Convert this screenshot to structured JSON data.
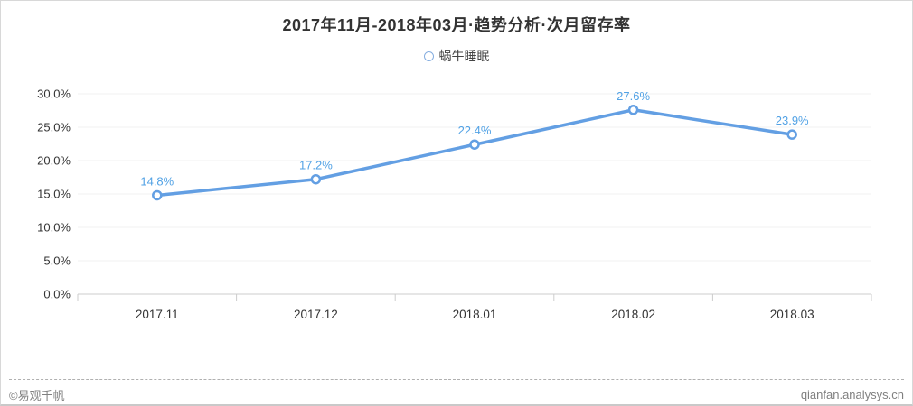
{
  "header": {
    "title": "2017年11月-2018年03月·趋势分析·次月留存率"
  },
  "legend": {
    "items": [
      {
        "label": "蜗牛睡眠",
        "marker": "open-circle-icon"
      }
    ]
  },
  "chart_data": {
    "type": "line",
    "title": "2017年11月-2018年03月·趋势分析·次月留存率",
    "categories": [
      "2017.11",
      "2017.12",
      "2018.01",
      "2018.02",
      "2018.03"
    ],
    "series": [
      {
        "name": "蜗牛睡眠",
        "values": [
          14.8,
          17.2,
          22.4,
          27.6,
          23.9
        ]
      }
    ],
    "data_labels": [
      "14.8%",
      "17.2%",
      "22.4%",
      "27.6%",
      "23.9%"
    ],
    "xlabel": "",
    "ylabel": "",
    "ylim": [
      0,
      30
    ],
    "ytick_step": 5,
    "ytick_labels": [
      "0.0%",
      "5.0%",
      "10.0%",
      "15.0%",
      "20.0%",
      "25.0%",
      "30.0%"
    ],
    "grid": true,
    "legend_position": "top-center",
    "marker_style": "open-circle"
  },
  "footer": {
    "copyright": "©易观千帆",
    "website": "qianfan.analysys.cn"
  },
  "colors": {
    "line": "#639fe3",
    "marker_fill": "#ffffff",
    "data_label": "#52a2e5",
    "grid_line": "#f0f0f0",
    "axis_line": "#cccccc",
    "tick_mark": "#cccccc",
    "axis_text": "#333333",
    "title_text": "#333333",
    "footer_text": "#808080",
    "legend_marker_stroke": "#86aee0"
  }
}
